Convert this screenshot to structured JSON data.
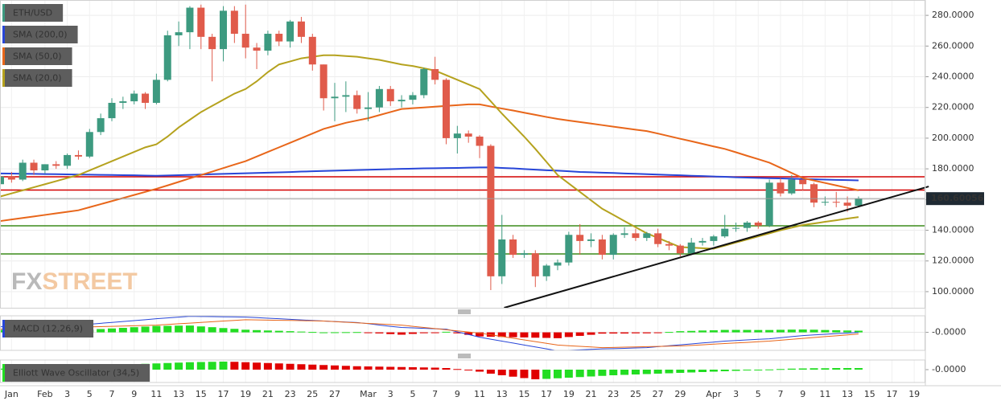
{
  "watermark": {
    "left": "FX",
    "right": "STREET"
  },
  "chart_data": [
    {
      "type": "candlestick",
      "title": "ETH/USD",
      "categories": [
        null,
        "Jan",
        null,
        null,
        "Feb",
        null,
        "3",
        null,
        "5",
        null,
        "7",
        null,
        "9",
        null,
        "11",
        null,
        "13",
        null,
        "15",
        null,
        "17",
        null,
        "19",
        null,
        "21",
        null,
        "23",
        null,
        "25",
        null,
        "27",
        null,
        null,
        "Mar",
        null,
        "3",
        null,
        "5",
        null,
        "7",
        null,
        "9",
        null,
        "11",
        null,
        "13",
        null,
        "15",
        null,
        "17",
        null,
        "19",
        null,
        "21",
        null,
        "23",
        null,
        "25",
        null,
        "27",
        null,
        "29",
        null,
        null,
        "Apr",
        null,
        "3",
        null,
        "5",
        null,
        "7",
        null,
        "9",
        null,
        "11",
        null,
        "13",
        null,
        "15",
        null,
        "17",
        null,
        "19"
      ],
      "open": [
        170,
        175,
        173,
        184,
        179,
        183,
        182,
        189,
        188,
        204,
        213,
        223,
        224,
        229,
        223,
        238,
        267,
        269,
        285,
        266,
        258,
        283,
        268,
        259,
        257,
        268,
        263,
        276,
        266,
        248,
        226,
        227,
        228,
        219,
        220,
        232,
        224,
        225,
        228,
        245,
        238,
        200,
        203,
        201,
        195,
        110,
        134,
        124,
        125,
        110,
        117,
        119,
        137,
        133,
        134,
        124,
        137,
        138,
        135,
        138,
        131,
        130,
        125,
        132,
        133,
        136,
        141,
        141.5,
        145,
        143,
        171,
        164,
        173,
        170,
        158,
        158.5,
        158,
        156,
        null,
        null,
        null,
        null,
        null
      ],
      "high": [
        176,
        178,
        186,
        186,
        183,
        185,
        190,
        192,
        206,
        216,
        226,
        227,
        231,
        230,
        242,
        270,
        276,
        286,
        287,
        268,
        286,
        286,
        287,
        262,
        270,
        270,
        277,
        279,
        268,
        248,
        236,
        237,
        231,
        230,
        234,
        234,
        228,
        230,
        246,
        253,
        239,
        208,
        205,
        202,
        196,
        150,
        137,
        127,
        127,
        118,
        121,
        139,
        144,
        138,
        137,
        138,
        142,
        141,
        139,
        141,
        133,
        131,
        135,
        135,
        137,
        150,
        145,
        146,
        146,
        173,
        174,
        176,
        173,
        171,
        162,
        165,
        162,
        162,
        null,
        null,
        null,
        null,
        null
      ],
      "low": [
        168,
        171,
        172,
        176,
        177,
        180,
        180,
        186,
        187,
        202,
        211,
        219,
        222,
        219,
        222,
        237,
        260,
        258,
        258,
        237,
        250,
        262,
        252,
        245,
        254,
        260,
        259,
        262,
        244,
        218,
        211,
        217,
        216,
        211,
        217,
        221,
        220,
        222,
        226,
        235,
        196,
        190,
        197,
        187,
        101,
        105,
        122,
        122,
        103,
        107,
        114,
        117,
        124,
        129,
        121,
        121,
        135,
        133,
        133,
        129,
        127,
        123,
        124,
        130,
        130,
        135,
        139,
        139,
        141,
        142,
        162,
        163,
        166,
        155,
        156,
        155,
        152,
        155,
        null,
        null,
        null,
        null,
        null
      ],
      "close": [
        175,
        173,
        184,
        179,
        183,
        182,
        189,
        188,
        204,
        213,
        223,
        224,
        229,
        223,
        238,
        267,
        269,
        285,
        266,
        258,
        283,
        268,
        259,
        257,
        268,
        263,
        276,
        266,
        248,
        226,
        227,
        228,
        219,
        220,
        232,
        224,
        225,
        228,
        245,
        238,
        200,
        203,
        201,
        195,
        110,
        134,
        124,
        125,
        110,
        117,
        119,
        137,
        133,
        134,
        124,
        137,
        138,
        135,
        138,
        131,
        130,
        125,
        132,
        133,
        136,
        141,
        141.5,
        145,
        143,
        171,
        164,
        173,
        170,
        158,
        158.5,
        158,
        156,
        160.60056,
        null,
        null,
        null,
        null,
        null
      ],
      "color_up": "#3d9a80",
      "color_down": "#e05b4b",
      "series": [
        {
          "name": "SMA (200,0)",
          "color": "#2846d8",
          "values": [
            177,
            176.9,
            176.8,
            176.7,
            176.6,
            176.5,
            176.4,
            176.3,
            176.2,
            176.1,
            176,
            175.9,
            175.8,
            175.6,
            175.5,
            175.7,
            175.9,
            176.1,
            176.3,
            176.5,
            176.7,
            176.9,
            177.1,
            177.3,
            177.5,
            177.7,
            177.9,
            178.2,
            178.4,
            178.6,
            178.8,
            179,
            179.2,
            179.4,
            179.6,
            179.8,
            180,
            180.1,
            180.3,
            180.4,
            180.5,
            180.6,
            180.8,
            180.9,
            181,
            180.6,
            180.3,
            179.9,
            179.5,
            179.1,
            178.8,
            178.4,
            178,
            177.8,
            177.5,
            177.3,
            177,
            176.8,
            176.5,
            176.3,
            176,
            175.8,
            175.5,
            175.3,
            175,
            174.8,
            174.5,
            174.3,
            174.1,
            173.9,
            173.8,
            173.6,
            173.4,
            173.2,
            173,
            172.8,
            172.7,
            172.5,
            null,
            null,
            null,
            null,
            null
          ]
        },
        {
          "name": "SMA (50,0)",
          "color": "#e8661a",
          "values": [
            146,
            147,
            148,
            149,
            150,
            151,
            152,
            153,
            155,
            157,
            159,
            161,
            163,
            165,
            167,
            169.2,
            171.5,
            173.8,
            176,
            178.2,
            180.5,
            182.8,
            185,
            188,
            191,
            194,
            197,
            200,
            203,
            206,
            208,
            210,
            211.5,
            213,
            215,
            217,
            219,
            219.5,
            220,
            220.5,
            221,
            221.5,
            222,
            222,
            220.6,
            219.3,
            218,
            216.6,
            215.2,
            213.8,
            212.5,
            211.5,
            210.5,
            209.5,
            208.5,
            207.5,
            206.5,
            205.5,
            204.6,
            203,
            201.3,
            199.6,
            198,
            196.3,
            194.6,
            193,
            190.8,
            188.5,
            186.3,
            184,
            180.7,
            177.3,
            174,
            172.4,
            170.8,
            169.2,
            167.6,
            166,
            null,
            null,
            null,
            null,
            null
          ]
        },
        {
          "name": "SMA (20,0)",
          "color": "#b5a21e",
          "values": [
            162,
            164,
            166,
            168,
            170,
            172,
            174,
            176,
            179,
            182,
            185,
            188,
            191,
            194,
            196,
            201,
            207,
            212,
            217,
            221,
            225,
            229,
            232,
            237,
            243,
            248,
            250,
            252,
            253,
            254,
            254,
            253.5,
            253,
            252,
            251,
            249.5,
            248,
            247,
            245.5,
            244,
            241,
            238,
            235,
            232,
            224,
            216,
            208.5,
            201,
            193,
            184.5,
            176,
            170.5,
            165,
            159.5,
            154,
            150,
            146,
            142,
            138,
            135,
            132,
            129,
            128.7,
            128.3,
            128,
            130,
            132,
            134,
            136,
            138,
            140,
            141.7,
            143.4,
            144.4,
            145.5,
            146.5,
            147.6,
            148.6,
            null,
            null,
            null,
            null,
            null
          ]
        }
      ],
      "levels": [
        {
          "value": 174.8,
          "color": "#d40000"
        },
        {
          "value": 166.2,
          "color": "#d40000"
        },
        {
          "value": 142.9,
          "color": "#3c8c1a"
        },
        {
          "value": 124.6,
          "color": "#3c8c1a"
        }
      ],
      "trendline": {
        "x": [
          45.2,
          83.3
        ],
        "y": [
          89.5,
          168.5
        ],
        "color": "#111111"
      },
      "ylim": [
        89.5,
        290
      ],
      "yticks": [
        {
          "value": 100,
          "label": "100.0000"
        },
        {
          "value": 120,
          "label": "120.0000"
        },
        {
          "value": 140,
          "label": "140.0000"
        },
        {
          "value": 160,
          "label": "160.0000"
        },
        {
          "value": 180,
          "label": "180.0000"
        },
        {
          "value": 200,
          "label": "200.0000"
        },
        {
          "value": 220,
          "label": "220.0000"
        },
        {
          "value": 240,
          "label": "240.0000"
        },
        {
          "value": 260,
          "label": "260.0000"
        },
        {
          "value": 280,
          "label": "280.0000"
        }
      ],
      "grid": true
    },
    {
      "type": "macd",
      "title": "MACD (12,26,9)",
      "macd": [
        5.8,
        6,
        6.3,
        6.5,
        6.7,
        7,
        7.2,
        7.4,
        8.3,
        9.3,
        10.2,
        11.1,
        12.1,
        13,
        14,
        14.8,
        15.7,
        16.5,
        16.3,
        16.2,
        16,
        15.9,
        15.7,
        15.1,
        14.5,
        14,
        13.4,
        12.8,
        12.2,
        11.6,
        11.1,
        10.6,
        10.1,
        8.9,
        7.5,
        6.2,
        5,
        4.6,
        4.1,
        3.7,
        3.3,
        0.5,
        -2.2,
        -5,
        -7,
        -9,
        -11,
        -13,
        -15,
        -17,
        -19,
        -18.5,
        -18,
        -17.5,
        -17,
        -16.7,
        -16.4,
        -16,
        -15.7,
        -14.7,
        -13.8,
        -12.8,
        -11.9,
        -10.9,
        -10,
        -9,
        -8.4,
        -7.8,
        -7.2,
        -6.6,
        -5.5,
        -4.4,
        -3.3,
        -2.6,
        -2,
        -1.3,
        -0.7,
        0,
        null,
        null,
        null,
        null,
        null
      ],
      "signal": [
        3.3,
        3.6,
        3.9,
        4.2,
        4.5,
        4.8,
        5.1,
        5.4,
        5.6,
        5.9,
        6.2,
        6.5,
        6.8,
        7.1,
        7.4,
        8.1,
        8.8,
        9.5,
        10.2,
        10.9,
        11.6,
        12.3,
        13,
        12.8,
        12.6,
        12.4,
        12.2,
        12,
        11.8,
        11.6,
        11,
        10.4,
        9.8,
        9.2,
        8.6,
        8,
        7.4,
        6.2,
        5,
        3.9,
        2.7,
        1.5,
        0.4,
        -0.8,
        -2.5,
        -4.3,
        -6,
        -7.8,
        -9.5,
        -11.3,
        -13,
        -13.7,
        -14.4,
        -15,
        -15.7,
        -15.5,
        -15.2,
        -15,
        -14.7,
        -14.5,
        -14.2,
        -14,
        -13.4,
        -12.8,
        -12.1,
        -11.5,
        -10.9,
        -10.3,
        -9.6,
        -9,
        -8.1,
        -7.2,
        -6.2,
        -5.3,
        -4.4,
        -3.5,
        -2.6,
        -1.7,
        null,
        null,
        null,
        null,
        null
      ],
      "histogram": [
        2.5,
        2.4,
        2.4,
        2.3,
        2.2,
        2.2,
        2.1,
        2,
        2.7,
        3.4,
        4,
        4.6,
        5.3,
        5.9,
        6.6,
        6.7,
        6.9,
        7,
        6.1,
        5.3,
        4.4,
        3.6,
        2.7,
        2.3,
        1.9,
        1.6,
        1.2,
        0.8,
        0.4,
        0,
        0.1,
        0.2,
        0.3,
        -0.3,
        -1.1,
        -1.8,
        -2.4,
        -1.6,
        -0.9,
        -0.2,
        0.6,
        -1,
        -2.6,
        -4.2,
        -4.5,
        -4.7,
        -5,
        -5.2,
        -5.5,
        -5.7,
        -6,
        -4.8,
        -3.6,
        -2.5,
        -1.3,
        -1.2,
        -1.2,
        -1,
        -1,
        -0.2,
        0.4,
        1.2,
        1.5,
        1.9,
        2.1,
        2.5,
        2.5,
        2.5,
        2.4,
        2.4,
        2.6,
        2.8,
        2.9,
        2.7,
        2.4,
        2.2,
        1.9,
        1.7,
        null,
        null,
        null,
        null,
        null
      ],
      "macd_color": "#2846d8",
      "signal_color": "#e8661a",
      "color_up": "#22dd22",
      "color_down": "#e00000",
      "ylim": [
        -18.5,
        17
      ],
      "yticks": [
        {
          "value": 0,
          "label": "-0.0000"
        }
      ]
    },
    {
      "type": "oscillator",
      "title": "Elliott Wave Oscillator (34,5)",
      "values": [
        5,
        6,
        8,
        9,
        11,
        13,
        15,
        17,
        19,
        21,
        23,
        25,
        27,
        29,
        31,
        33,
        35,
        37,
        38,
        39,
        40,
        39,
        37,
        35,
        33,
        31,
        29,
        27,
        25,
        23,
        21,
        19,
        17,
        16,
        15,
        14,
        13,
        12,
        11,
        10,
        8,
        3,
        -3,
        -10,
        -20,
        -28,
        -35,
        -42,
        -48,
        -46,
        -43,
        -40,
        -37,
        -34,
        -31,
        -28,
        -26,
        -24,
        -22,
        -20,
        -18,
        -16,
        -14,
        -12,
        -10,
        -8,
        -6,
        -4,
        -2,
        1,
        3,
        5,
        6,
        7,
        7,
        8,
        8,
        8,
        null,
        null,
        null,
        null,
        null
      ],
      "color_up": "#22dd22",
      "color_down": "#e00000",
      "ylim": [
        -64,
        48
      ],
      "yticks": [
        {
          "value": 0,
          "label": "-0.0000"
        }
      ]
    }
  ]
}
